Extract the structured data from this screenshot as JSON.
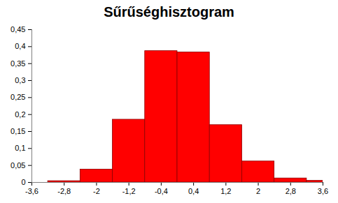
{
  "chart_data": {
    "type": "histogram",
    "title": "Sűrűséghisztogram",
    "bins": [
      -3.2,
      -2.4,
      -1.6,
      -0.8,
      0,
      0.8,
      1.6,
      2.4,
      3.2,
      3.6
    ],
    "values": [
      0.004,
      0.038,
      0.185,
      0.387,
      0.383,
      0.169,
      0.062,
      0.012,
      0.005
    ],
    "color": "#ff0000",
    "xlim": [
      -3.6,
      3.6
    ],
    "xticks": [
      {
        "value": -3.6,
        "label": "-3,6"
      },
      {
        "value": -2.8,
        "label": "-2,8"
      },
      -2,
      {
        "value": -1.2,
        "label": "-1,2"
      },
      {
        "value": -0.4,
        "label": "-0,4"
      },
      {
        "value": 0.4,
        "label": "0,4"
      },
      {
        "value": 1.2,
        "label": "1,2"
      },
      2,
      {
        "value": 2.8,
        "label": "2,8"
      },
      {
        "value": 3.6,
        "label": "3,6"
      }
    ],
    "ylim": [
      0,
      0.45
    ],
    "yticks": [
      0,
      {
        "value": 0.05,
        "label": "0,05"
      },
      {
        "value": 0.1,
        "label": "0,1"
      },
      {
        "value": 0.15,
        "label": "0,15"
      },
      {
        "value": 0.2,
        "label": "0,2"
      },
      {
        "value": 0.25,
        "label": "0,25"
      },
      {
        "value": 0.3,
        "label": "0,3"
      },
      {
        "value": 0.35,
        "label": "0,35"
      },
      {
        "value": 0.4,
        "label": "0,4"
      },
      {
        "value": 0.45,
        "label": "0,45"
      }
    ],
    "grid": false
  }
}
